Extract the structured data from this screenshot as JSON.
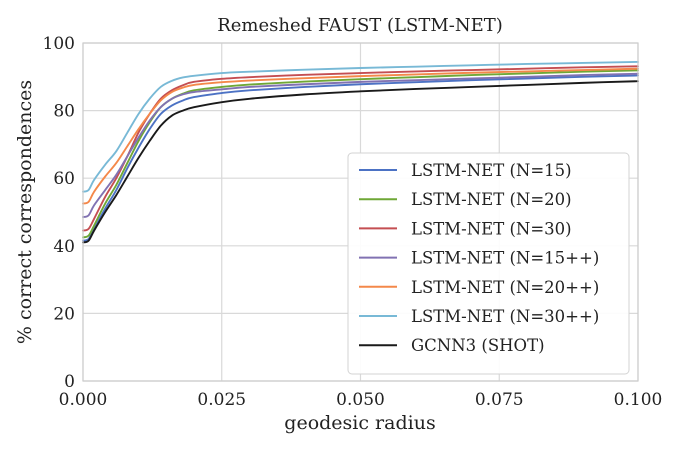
{
  "chart_data": {
    "type": "line",
    "title": "Remeshed FAUST (LSTM-NET)",
    "xlabel": "geodesic radius",
    "ylabel": "% correct correspondences",
    "xlim": [
      0.0,
      0.1
    ],
    "ylim": [
      0,
      100
    ],
    "xticks": [
      0.0,
      0.025,
      0.05,
      0.075,
      0.1
    ],
    "xtick_labels": [
      "0.000",
      "0.025",
      "0.050",
      "0.075",
      "0.100"
    ],
    "yticks": [
      0,
      20,
      40,
      60,
      80,
      100
    ],
    "ytick_labels": [
      "0",
      "20",
      "40",
      "60",
      "80",
      "100"
    ],
    "grid": true,
    "legend_position": "lower-right",
    "x": [
      0.0,
      0.001,
      0.002,
      0.004,
      0.006,
      0.008,
      0.01,
      0.012,
      0.014,
      0.016,
      0.018,
      0.02,
      0.025,
      0.03,
      0.04,
      0.05,
      0.06,
      0.07,
      0.08,
      0.09,
      0.1
    ],
    "series": [
      {
        "name": "LSTM-NET (N=15)",
        "color": "#4c72c4",
        "values": [
          41.5,
          42.0,
          45.0,
          51.0,
          56.5,
          63.0,
          69.0,
          74.5,
          79.0,
          81.5,
          83.0,
          84.0,
          85.2,
          86.0,
          87.0,
          87.8,
          88.4,
          89.0,
          89.5,
          90.0,
          90.4
        ]
      },
      {
        "name": "LSTM-NET (N=20)",
        "color": "#6fa736",
        "values": [
          42.5,
          43.0,
          46.0,
          52.5,
          58.0,
          64.5,
          71.0,
          76.5,
          81.0,
          83.5,
          85.0,
          86.0,
          87.0,
          87.7,
          88.6,
          89.3,
          89.9,
          90.5,
          91.0,
          91.5,
          91.9
        ]
      },
      {
        "name": "LSTM-NET (N=30)",
        "color": "#c44e52",
        "values": [
          44.5,
          45.0,
          48.0,
          54.5,
          60.0,
          66.5,
          73.5,
          79.0,
          83.5,
          86.0,
          87.5,
          88.5,
          89.4,
          89.9,
          90.6,
          91.1,
          91.6,
          92.0,
          92.4,
          92.8,
          93.1
        ]
      },
      {
        "name": "LSTM-NET (N=15++)",
        "color": "#8172b2",
        "values": [
          48.5,
          49.0,
          52.0,
          56.5,
          61.0,
          66.5,
          72.0,
          77.0,
          81.0,
          83.5,
          84.8,
          85.5,
          86.3,
          87.0,
          87.8,
          88.5,
          89.0,
          89.5,
          90.0,
          90.5,
          90.9
        ]
      },
      {
        "name": "LSTM-NET (N=20++)",
        "color": "#f4884a",
        "values": [
          52.5,
          53.0,
          56.0,
          60.5,
          64.5,
          69.5,
          74.5,
          79.0,
          83.0,
          85.5,
          86.8,
          87.6,
          88.4,
          88.9,
          89.6,
          90.2,
          90.7,
          91.2,
          91.6,
          92.0,
          92.4
        ]
      },
      {
        "name": "LSTM-NET (N=30++)",
        "color": "#78b9d6",
        "values": [
          56.0,
          56.5,
          59.5,
          64.0,
          68.0,
          73.5,
          79.0,
          83.5,
          87.0,
          88.8,
          89.8,
          90.3,
          91.1,
          91.5,
          92.1,
          92.6,
          93.0,
          93.4,
          93.8,
          94.1,
          94.4
        ]
      },
      {
        "name": "GCNN3 (SHOT)",
        "color": "#1a1a1a",
        "values": [
          41.0,
          41.5,
          44.5,
          50.0,
          55.0,
          60.5,
          66.0,
          71.0,
          75.5,
          78.5,
          80.0,
          81.0,
          82.5,
          83.5,
          84.8,
          85.7,
          86.4,
          87.0,
          87.6,
          88.2,
          88.7
        ]
      }
    ]
  }
}
